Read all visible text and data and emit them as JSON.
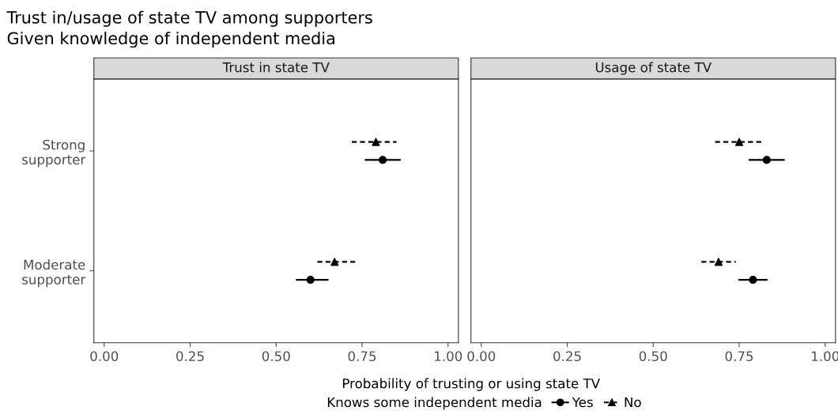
{
  "chart_data": [
    {
      "type": "scatter",
      "title": "Trust in state TV",
      "orientation": "horizontal",
      "categories": [
        "Strong\nsupporter",
        "Moderate\nsupporter"
      ],
      "xlim": [
        -0.03,
        1.03
      ],
      "xticks": [
        {
          "value": 0,
          "label": "0.00"
        },
        {
          "value": 0.25,
          "label": "0.25"
        },
        {
          "value": 0.5,
          "label": "0.50"
        },
        {
          "value": 0.75,
          "label": "0.75"
        },
        {
          "value": 1,
          "label": "1.00"
        }
      ],
      "grid": false,
      "legend": "bottom",
      "legend_title": "Knows some independent media",
      "xlabel": "Probability of trusting or using state TV",
      "annotations": [
        "Trust in/usage of state TV among supporters",
        "Given knowledge of independent media"
      ],
      "series": [
        {
          "name": "Yes",
          "color": "#000000",
          "marker": "circle",
          "line_style": "solid",
          "values": [
            0.81,
            0.6
          ],
          "errors": [
            [
              0.76,
              0.86
            ],
            [
              0.56,
              0.65
            ]
          ]
        },
        {
          "name": "No",
          "color": "#000000",
          "marker": "triangle",
          "line_style": "dashed",
          "values": [
            0.79,
            0.67
          ],
          "errors": [
            [
              0.72,
              0.85
            ],
            [
              0.62,
              0.73
            ]
          ]
        }
      ]
    },
    {
      "type": "scatter",
      "title": "Usage of state TV",
      "orientation": "horizontal",
      "categories": [
        null,
        null
      ],
      "tick_labels": "x",
      "xlim": [
        -0.03,
        1.03
      ],
      "xticks": [
        {
          "value": 0,
          "label": "0.00"
        },
        {
          "value": 0.25,
          "label": "0.25"
        },
        {
          "value": 0.5,
          "label": "0.50"
        },
        {
          "value": 0.75,
          "label": "0.75"
        },
        {
          "value": 1,
          "label": "1.00"
        }
      ],
      "grid": false,
      "series": [
        {
          "name": "Yes",
          "color": "#000000",
          "marker": "circle",
          "line_style": "solid",
          "values": [
            0.83,
            0.79
          ],
          "errors": [
            [
              0.78,
              0.88
            ],
            [
              0.75,
              0.83
            ]
          ]
        },
        {
          "name": "No",
          "color": "#000000",
          "marker": "triangle",
          "line_style": "dashed",
          "values": [
            0.75,
            0.69
          ],
          "errors": [
            [
              0.68,
              0.82
            ],
            [
              0.64,
              0.74
            ]
          ]
        }
      ]
    }
  ]
}
